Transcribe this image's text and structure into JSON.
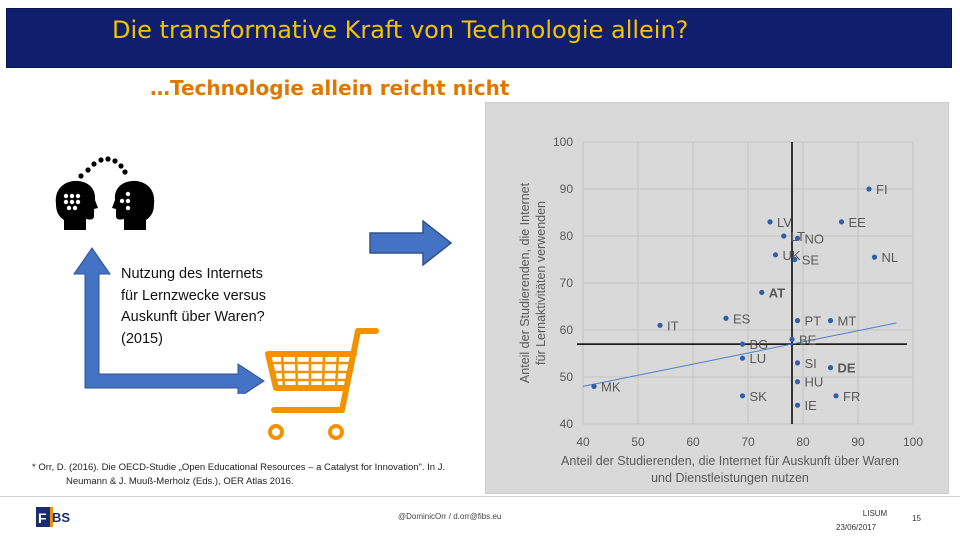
{
  "slide": {
    "title": "Die transformative Kraft von Technologie allein?",
    "subtitle": "…Technologie allein reicht nicht",
    "process_note": "Nutzung des Internets für Lernzwecke versus Auskunft über Waren? (2015)",
    "footnote_line1": "* Orr, D. (2016). Die OECD-Studie „Open Educational Resources – a Catalyst for Innovation\". In J.",
    "footnote_line2": "Neumann & J. Muuß-Merholz (Eds.), OER Atlas 2016.",
    "contact": "@DominicOrr / d.orr@fibs.eu",
    "event": "LISUM",
    "date": "23/06/2017",
    "page_number": "15",
    "logo_text": "BS"
  },
  "colors": {
    "title_bar": "#0f1f6e",
    "title_text": "#f3c300",
    "subtitle": "#e07800",
    "arrow_blue": "#4472c4",
    "cart_orange": "#f39200",
    "chart_background": "#d9d9d9",
    "point_color": "#2e5fa8",
    "trendline": "#4a7fcb"
  },
  "icons": [
    "two-heads-icon",
    "right-arrow-icon",
    "shopping-cart-icon",
    "corner-arrow-icon"
  ],
  "chart_data": {
    "type": "scatter",
    "xlabel": "Anteil der Studierenden, die Internet für Auskunft über Waren und Dienstleistungen nutzen",
    "ylabel": "Anteil der Studierenden, die Internet für Lernaktivitäten verwenden",
    "xlim": [
      40,
      100
    ],
    "ylim": [
      40,
      100
    ],
    "x_ticks": [
      40,
      50,
      60,
      70,
      80,
      90,
      100
    ],
    "y_ticks": [
      40,
      50,
      60,
      70,
      80,
      90,
      100
    ],
    "grid": true,
    "reference_lines": {
      "x": 78,
      "y": 57
    },
    "trendline": {
      "x": [
        40,
        97
      ],
      "y": [
        48,
        61.5
      ]
    },
    "points": [
      {
        "label": "FI",
        "x": 92,
        "y": 90,
        "bold": false
      },
      {
        "label": "EE",
        "x": 87,
        "y": 83,
        "bold": false
      },
      {
        "label": "LV",
        "x": 74,
        "y": 83,
        "bold": false
      },
      {
        "label": "LT",
        "x": 76.5,
        "y": 80,
        "bold": false
      },
      {
        "label": "NO",
        "x": 79,
        "y": 79.5,
        "bold": false
      },
      {
        "label": "UK",
        "x": 75,
        "y": 76,
        "bold": false
      },
      {
        "label": "SE",
        "x": 78.5,
        "y": 75,
        "bold": false
      },
      {
        "label": "NL",
        "x": 93,
        "y": 75.5,
        "bold": false
      },
      {
        "label": "AT",
        "x": 72.5,
        "y": 68,
        "bold": true
      },
      {
        "label": "PT",
        "x": 79,
        "y": 62,
        "bold": false
      },
      {
        "label": "MT",
        "x": 85,
        "y": 62,
        "bold": false
      },
      {
        "label": "ES",
        "x": 66,
        "y": 62.5,
        "bold": false
      },
      {
        "label": "IT",
        "x": 54,
        "y": 61,
        "bold": false
      },
      {
        "label": "BE",
        "x": 78,
        "y": 58,
        "bold": false
      },
      {
        "label": "BG",
        "x": 69,
        "y": 57,
        "bold": false
      },
      {
        "label": "LU",
        "x": 69,
        "y": 54,
        "bold": false
      },
      {
        "label": "SI",
        "x": 79,
        "y": 53,
        "bold": false
      },
      {
        "label": "DE",
        "x": 85,
        "y": 52,
        "bold": true
      },
      {
        "label": "HU",
        "x": 79,
        "y": 49,
        "bold": false
      },
      {
        "label": "MK",
        "x": 42,
        "y": 48,
        "bold": false
      },
      {
        "label": "SK",
        "x": 69,
        "y": 46,
        "bold": false
      },
      {
        "label": "FR",
        "x": 86,
        "y": 46,
        "bold": false
      },
      {
        "label": "IE",
        "x": 79,
        "y": 44,
        "bold": false
      }
    ]
  }
}
